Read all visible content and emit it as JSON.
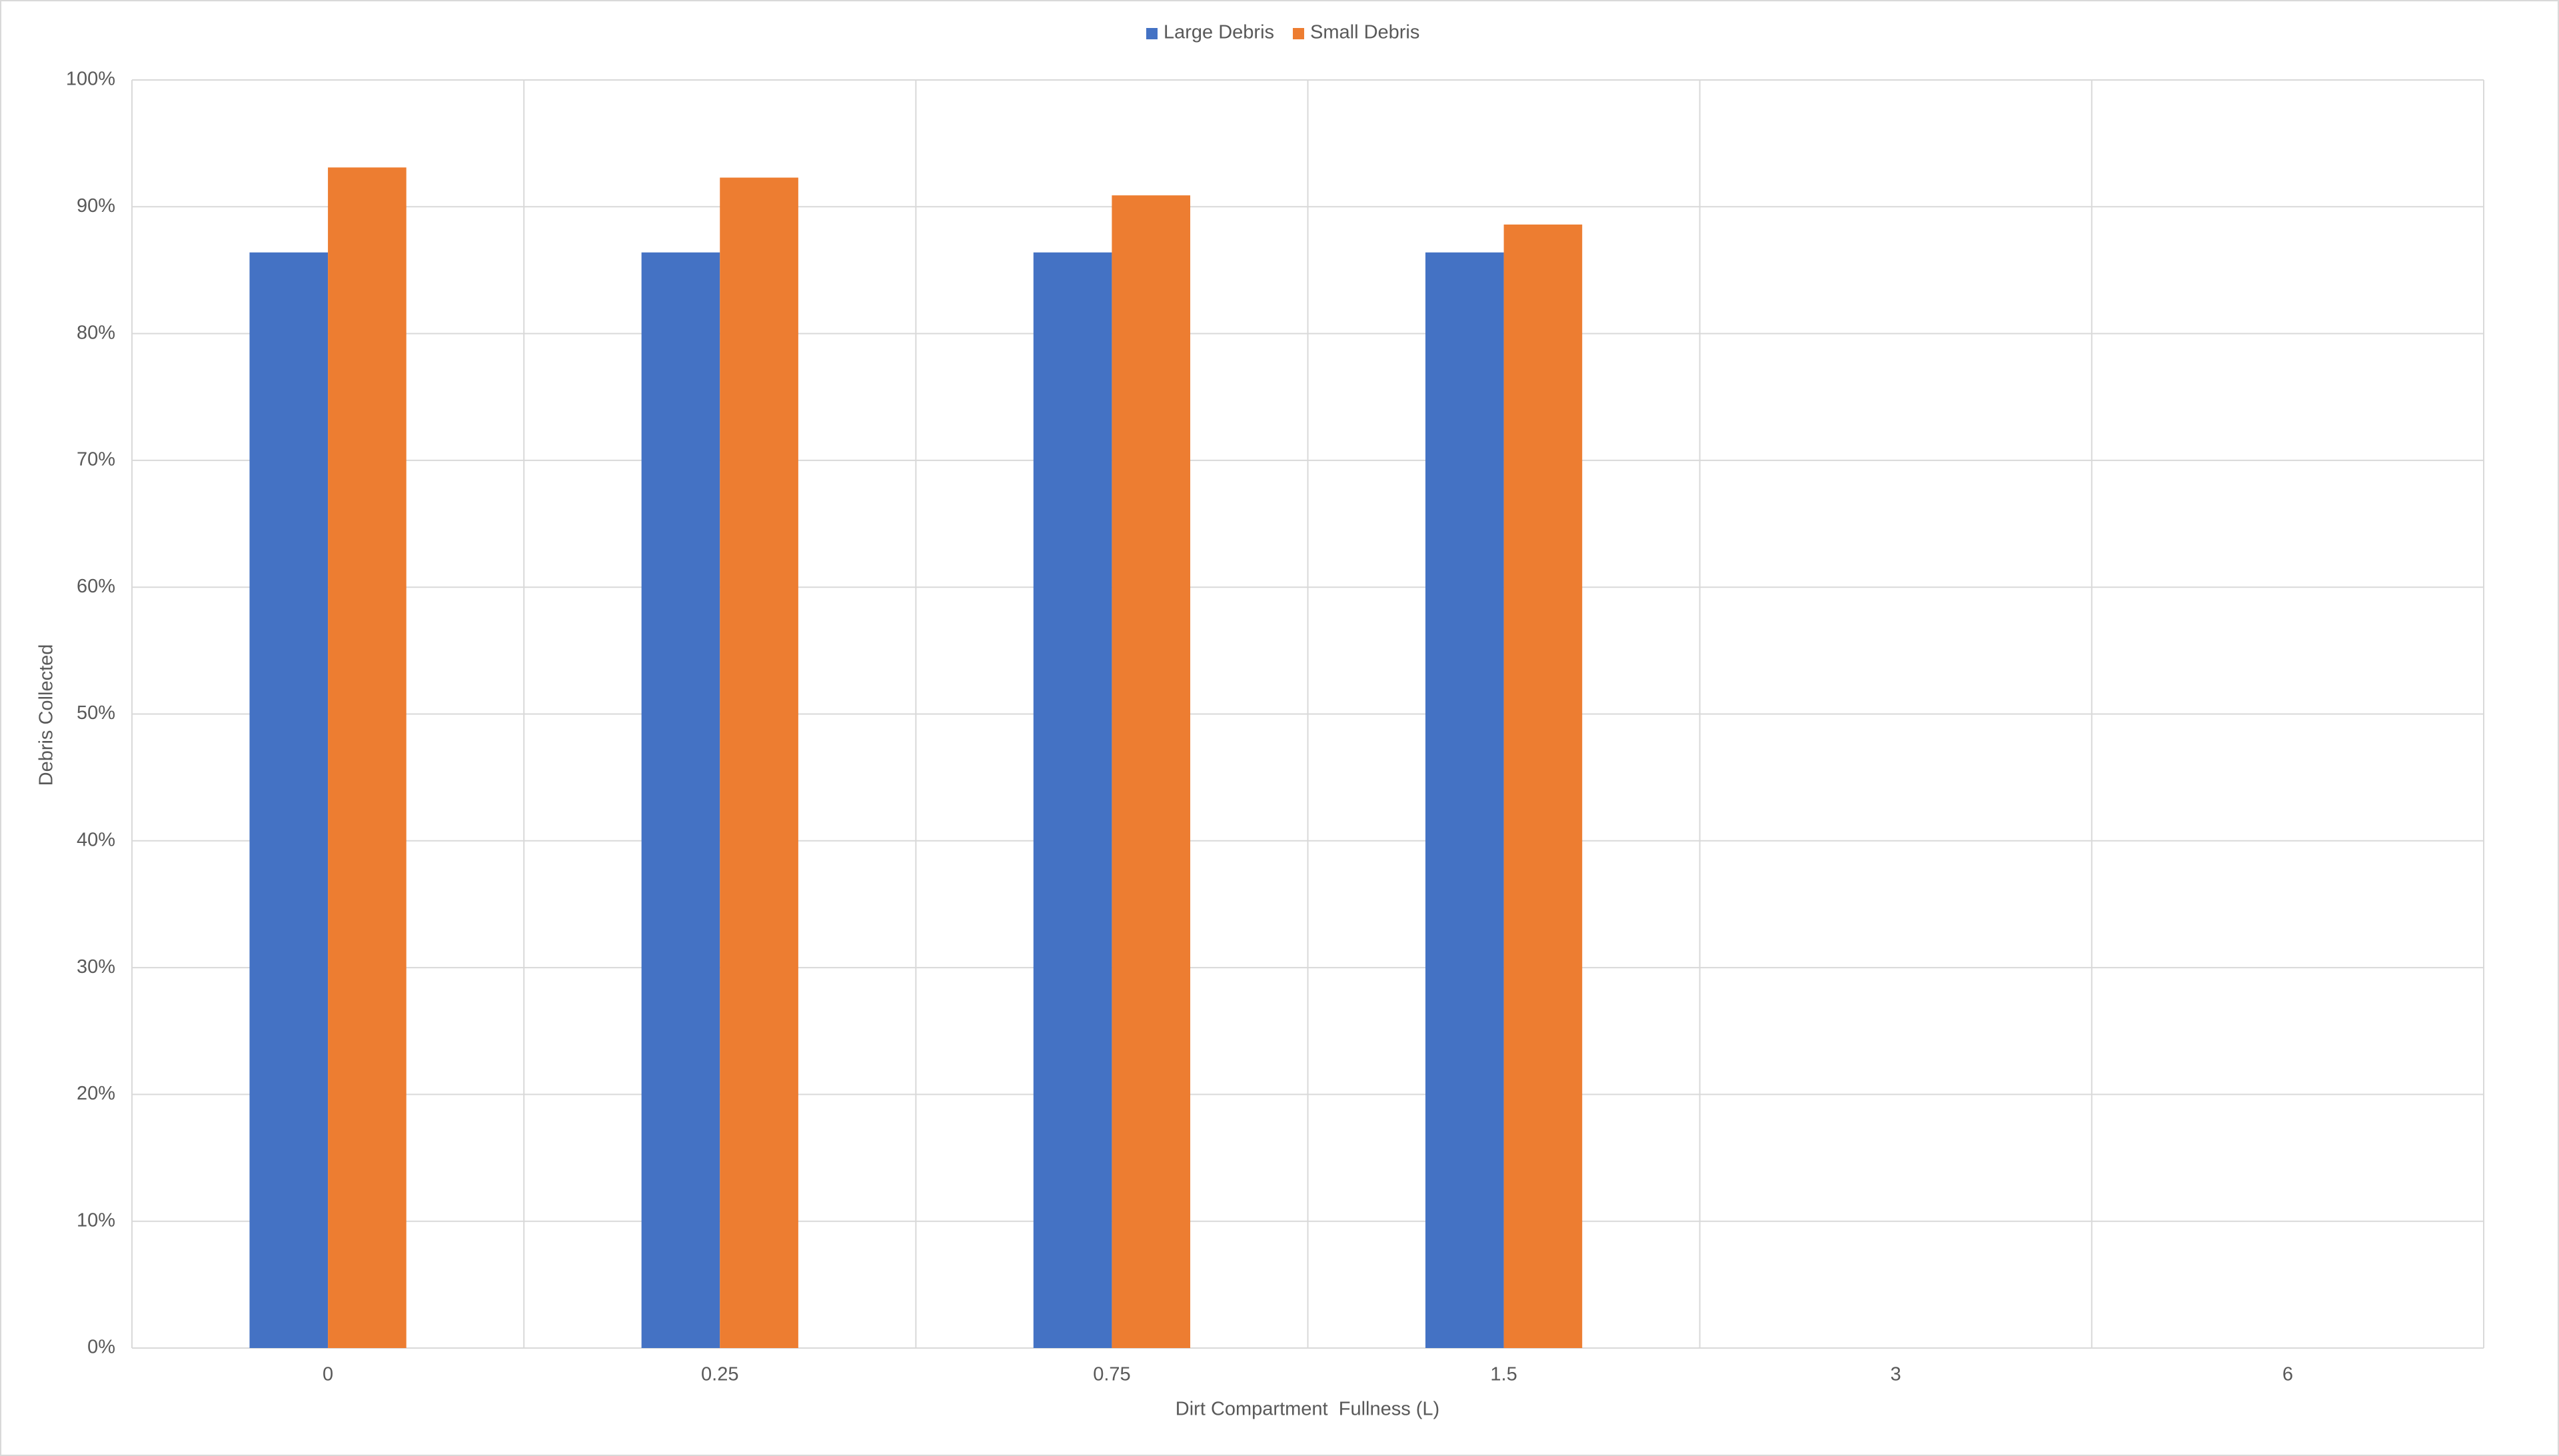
{
  "chart_data": {
    "type": "bar",
    "categories": [
      "0",
      "0.25",
      "0.75",
      "1.5",
      "3",
      "6"
    ],
    "series": [
      {
        "name": "Large Debris",
        "color": "#4472c4",
        "values": [
          86.4,
          86.4,
          86.4,
          86.4,
          null,
          null
        ]
      },
      {
        "name": "Small Debris",
        "color": "#ed7d31",
        "values": [
          93.1,
          92.3,
          90.9,
          88.6,
          null,
          null
        ]
      }
    ],
    "ylim": [
      0,
      100
    ],
    "yticks": [
      {
        "value": 0,
        "label": "0%"
      },
      {
        "value": 10,
        "label": "10%"
      },
      {
        "value": 20,
        "label": "20%"
      },
      {
        "value": 30,
        "label": "30%"
      },
      {
        "value": 40,
        "label": "40%"
      },
      {
        "value": 50,
        "label": "50%"
      },
      {
        "value": 60,
        "label": "60%"
      },
      {
        "value": 70,
        "label": "70%"
      },
      {
        "value": 80,
        "label": "80%"
      },
      {
        "value": 90,
        "label": "90%"
      },
      {
        "value": 100,
        "label": "100%"
      }
    ],
    "xlabel": "Dirt Compartment  Fullness (L)",
    "ylabel": "Debris Collected",
    "grid": true,
    "legend": "top"
  }
}
